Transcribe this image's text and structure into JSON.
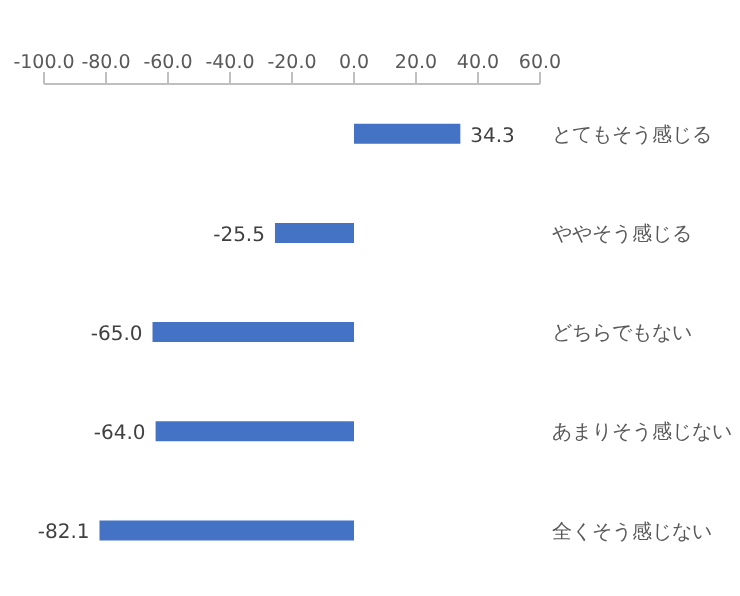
{
  "chart_data": {
    "type": "bar",
    "orientation": "horizontal",
    "categories": [
      "とてもそう感じる",
      "ややそう感じる",
      "どちらでもない",
      "あまりそう感じない",
      "全くそう感じない"
    ],
    "values": [
      34.3,
      -25.5,
      -65.0,
      -64.0,
      -82.1
    ],
    "value_labels": [
      "34.3",
      "-25.5",
      "-65.0",
      "-64.0",
      "-82.1"
    ],
    "color": "#4472c4",
    "xlim": [
      -100,
      60
    ],
    "xticks": [
      {
        "value": -100,
        "label": "-100.0"
      },
      {
        "value": -80,
        "label": "-80.0"
      },
      {
        "value": -60,
        "label": "-60.0"
      },
      {
        "value": -40,
        "label": "-40.0"
      },
      {
        "value": -20,
        "label": "-20.0"
      },
      {
        "value": 0,
        "label": "0.0"
      },
      {
        "value": 20,
        "label": "20.0"
      },
      {
        "value": 40,
        "label": "40.0"
      },
      {
        "value": 60,
        "label": "60.0"
      }
    ],
    "grid": false,
    "legend": false
  }
}
